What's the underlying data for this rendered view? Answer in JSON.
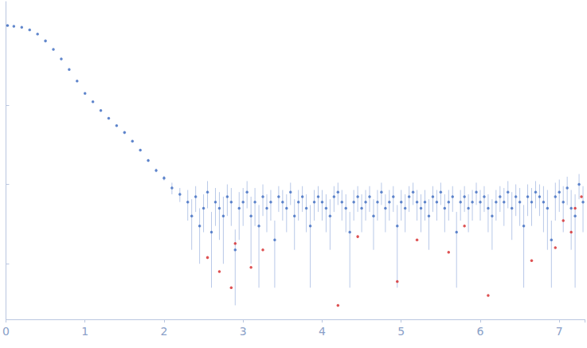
{
  "chart_data": {
    "type": "scatter",
    "log": "y",
    "grid": false,
    "tick_labels": "x",
    "xlim": [
      0,
      7.32
    ],
    "xticks": [
      0,
      1,
      2,
      3,
      4,
      5,
      6,
      7
    ],
    "ylim": [
      0.0002,
      2
    ],
    "yticks": [
      0.001,
      0.01,
      0.1,
      1
    ],
    "series": [
      {
        "color": "#3d6cc0",
        "marker": "circle",
        "x": [
          0.02,
          0.1,
          0.2,
          0.3,
          0.4,
          0.5,
          0.6,
          0.7,
          0.8,
          0.9,
          1.0,
          1.1,
          1.2,
          1.3,
          1.4,
          1.5,
          1.6,
          1.7,
          1.8,
          1.9,
          2.0,
          2.1,
          2.2,
          2.3,
          2.35,
          2.4,
          2.45,
          2.5,
          2.55,
          2.6,
          2.65,
          2.7,
          2.75,
          2.8,
          2.85,
          2.9,
          2.95,
          3.0,
          3.05,
          3.1,
          3.15,
          3.2,
          3.25,
          3.3,
          3.35,
          3.4,
          3.45,
          3.5,
          3.55,
          3.6,
          3.65,
          3.7,
          3.75,
          3.8,
          3.85,
          3.9,
          3.95,
          4.0,
          4.05,
          4.1,
          4.15,
          4.2,
          4.25,
          4.3,
          4.35,
          4.4,
          4.45,
          4.5,
          4.55,
          4.6,
          4.65,
          4.7,
          4.75,
          4.8,
          4.85,
          4.9,
          4.95,
          5.0,
          5.05,
          5.1,
          5.15,
          5.2,
          5.25,
          5.3,
          5.35,
          5.4,
          5.45,
          5.5,
          5.55,
          5.6,
          5.65,
          5.7,
          5.75,
          5.8,
          5.85,
          5.9,
          5.95,
          6.0,
          6.05,
          6.1,
          6.15,
          6.2,
          6.25,
          6.3,
          6.35,
          6.4,
          6.45,
          6.5,
          6.55,
          6.6,
          6.65,
          6.7,
          6.75,
          6.8,
          6.85,
          6.9,
          6.95,
          7.0,
          7.05,
          7.1,
          7.15,
          7.2,
          7.25,
          7.3
        ],
        "values": [
          1.0,
          0.98,
          0.95,
          0.88,
          0.78,
          0.64,
          0.5,
          0.38,
          0.28,
          0.2,
          0.14,
          0.11,
          0.085,
          0.068,
          0.055,
          0.045,
          0.035,
          0.027,
          0.02,
          0.015,
          0.012,
          0.009,
          0.0075,
          0.006,
          0.004,
          0.007,
          0.003,
          0.005,
          0.008,
          0.0025,
          0.006,
          0.005,
          0.004,
          0.007,
          0.006,
          0.0015,
          0.005,
          0.006,
          0.008,
          0.004,
          0.006,
          0.003,
          0.007,
          0.005,
          0.006,
          0.002,
          0.007,
          0.006,
          0.005,
          0.008,
          0.004,
          0.006,
          0.007,
          0.005,
          0.003,
          0.006,
          0.007,
          0.006,
          0.005,
          0.004,
          0.007,
          0.008,
          0.006,
          0.005,
          0.0025,
          0.006,
          0.007,
          0.005,
          0.006,
          0.007,
          0.004,
          0.006,
          0.008,
          0.005,
          0.006,
          0.007,
          0.003,
          0.006,
          0.005,
          0.007,
          0.008,
          0.006,
          0.005,
          0.006,
          0.004,
          0.007,
          0.006,
          0.008,
          0.005,
          0.006,
          0.007,
          0.0025,
          0.006,
          0.007,
          0.005,
          0.006,
          0.008,
          0.006,
          0.007,
          0.005,
          0.004,
          0.006,
          0.007,
          0.006,
          0.008,
          0.005,
          0.007,
          0.006,
          0.003,
          0.007,
          0.006,
          0.008,
          0.007,
          0.006,
          0.005,
          0.002,
          0.007,
          0.008,
          0.006,
          0.009,
          0.005,
          0.004,
          0.01,
          0.006
        ],
        "errors": [
          0.02,
          0.01,
          0.008,
          0.006,
          0.005,
          0.004,
          0.003,
          0.003,
          0.002,
          0.002,
          0.0015,
          0.0012,
          0.001,
          0.0009,
          0.0008,
          0.0008,
          0.0008,
          0.0008,
          0.0008,
          0.0008,
          0.0008,
          0.0015,
          0.0015,
          0.0025,
          0.0025,
          0.0025,
          0.002,
          0.0025,
          0.003,
          0.002,
          0.003,
          0.003,
          0.003,
          0.003,
          0.003,
          0.0012,
          0.003,
          0.003,
          0.003,
          0.003,
          0.003,
          0.0025,
          0.003,
          0.0025,
          0.0025,
          0.0015,
          0.0025,
          0.0025,
          0.0025,
          0.0025,
          0.0025,
          0.0025,
          0.0025,
          0.0025,
          0.0025,
          0.0025,
          0.0025,
          0.0025,
          0.0025,
          0.0025,
          0.0025,
          0.0025,
          0.0025,
          0.0025,
          0.002,
          0.0025,
          0.0025,
          0.0025,
          0.0025,
          0.0025,
          0.0025,
          0.0025,
          0.0025,
          0.0025,
          0.0025,
          0.0025,
          0.0025,
          0.0025,
          0.0025,
          0.0025,
          0.0025,
          0.0025,
          0.0025,
          0.0025,
          0.0025,
          0.0025,
          0.0025,
          0.0025,
          0.0025,
          0.0025,
          0.0025,
          0.002,
          0.0025,
          0.0025,
          0.0025,
          0.0025,
          0.0025,
          0.0025,
          0.0025,
          0.0025,
          0.0025,
          0.0025,
          0.0025,
          0.003,
          0.003,
          0.003,
          0.003,
          0.003,
          0.0025,
          0.003,
          0.003,
          0.003,
          0.003,
          0.0035,
          0.0035,
          0.0015,
          0.0035,
          0.0035,
          0.0035,
          0.0035,
          0.0035,
          0.0035,
          0.0035,
          0.0035
        ]
      },
      {
        "color": "#d62728",
        "marker": "circle",
        "x": [
          2.55,
          2.7,
          2.85,
          2.9,
          3.1,
          3.25,
          4.2,
          4.45,
          4.95,
          5.2,
          5.6,
          5.8,
          6.1,
          6.65,
          6.95,
          7.05,
          7.15,
          7.2,
          7.28
        ],
        "values": [
          0.0012,
          0.0008,
          0.0005,
          0.0018,
          0.0009,
          0.0015,
          0.0003,
          0.0022,
          0.0006,
          0.002,
          0.0014,
          0.003,
          0.0004,
          0.0011,
          0.0016,
          0.0035,
          0.0025,
          0.005,
          0.007
        ]
      }
    ]
  }
}
